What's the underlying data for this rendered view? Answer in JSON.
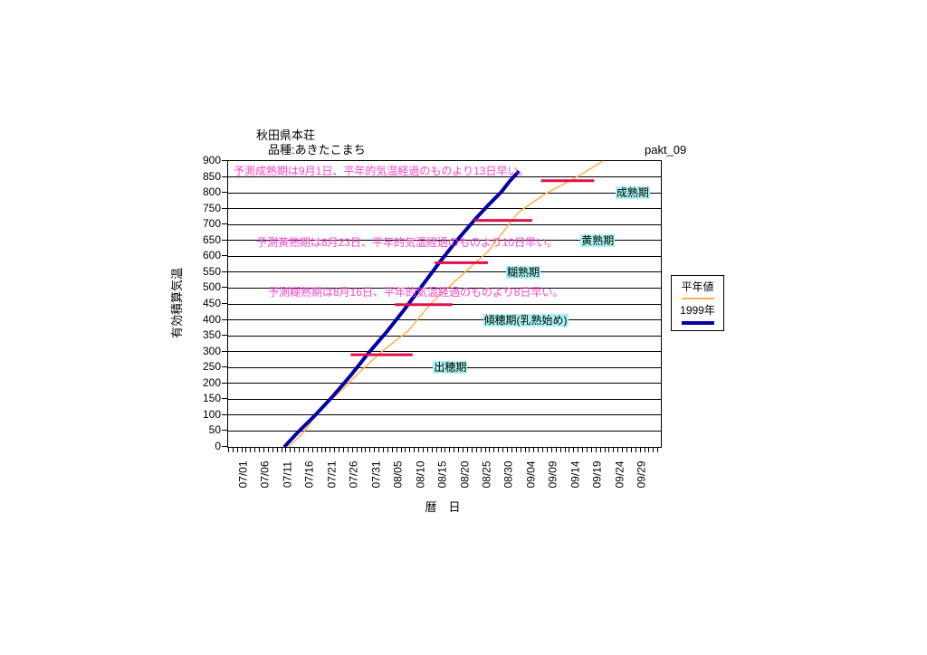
{
  "chart_data": {
    "type": "line",
    "title": "秋田県本荘",
    "subtitle": "品種:あきたこまち",
    "watermark": "pakt_09",
    "xlabel": "暦　日",
    "ylabel": "有効積算気温",
    "ylim": [
      0,
      900
    ],
    "ytick_step": 50,
    "grid": true,
    "legend_position": "right",
    "x_tick_labels": [
      "07/01",
      "07/06",
      "07/11",
      "07/16",
      "07/21",
      "07/26",
      "07/31",
      "08/05",
      "08/10",
      "08/15",
      "08/20",
      "08/25",
      "08/30",
      "09/04",
      "09/09",
      "09/14",
      "09/19",
      "09/24",
      "09/29"
    ],
    "x_day_span": 90,
    "series": [
      {
        "name": "平年値",
        "color": "#FFAE4C",
        "stroke_width": 1.5,
        "points_day_value": [
          [
            10,
            0
          ],
          [
            13,
            40
          ],
          [
            17,
            115
          ],
          [
            22,
            180
          ],
          [
            26,
            235
          ],
          [
            31,
            300
          ],
          [
            37,
            365
          ],
          [
            42,
            450
          ],
          [
            48,
            527
          ],
          [
            55,
            615
          ],
          [
            62,
            740
          ],
          [
            68,
            797
          ],
          [
            75,
            849
          ],
          [
            81,
            900
          ]
        ]
      },
      {
        "name": "1999年",
        "color": "#0000A8",
        "stroke_width": 4,
        "points_day_value": [
          [
            9,
            0
          ],
          [
            12,
            45
          ],
          [
            16,
            100
          ],
          [
            20,
            160
          ],
          [
            24,
            225
          ],
          [
            28,
            295
          ],
          [
            32,
            360
          ],
          [
            36,
            430
          ],
          [
            40,
            505
          ],
          [
            44,
            580
          ],
          [
            48,
            650
          ],
          [
            52,
            715
          ],
          [
            55,
            760
          ],
          [
            58,
            802
          ],
          [
            60,
            838
          ],
          [
            62,
            868
          ]
        ]
      }
    ],
    "stage_segments": {
      "color": "#E0104C",
      "stroke_width": 3,
      "items": [
        {
          "start_day": 24,
          "end_day": 38,
          "value": 290
        },
        {
          "start_day": 34,
          "end_day": 47,
          "value": 448
        },
        {
          "start_day": 43,
          "end_day": 55,
          "value": 580
        },
        {
          "start_day": 52,
          "end_day": 65,
          "value": 713
        },
        {
          "start_day": 67,
          "end_day": 79,
          "value": 838
        }
      ]
    },
    "stage_labels": [
      {
        "text": "出穂期",
        "day": 46.5,
        "value": 250
      },
      {
        "text": "傾穂期(乳熟始め)",
        "day": 63.5,
        "value": 400
      },
      {
        "text": "糊熟期",
        "day": 63.0,
        "value": 550
      },
      {
        "text": "黄熟期",
        "day": 79.8,
        "value": 650
      },
      {
        "text": "成熟期",
        "day": 87.7,
        "value": 800
      }
    ],
    "annotations": [
      {
        "text": "予測成熟期は9月1日、平年的気温経過のものより13日早い。"
      },
      {
        "text": "予測黄熟期は8月23日、平年的気温経過のものより10日早い。"
      },
      {
        "text": "予測糊熟期は8月16日、平年的気温経過のものより8日早い。"
      }
    ],
    "legend": {
      "entries": [
        "平年値",
        "1999年"
      ]
    },
    "colors": {
      "annotation_text": "#FF44CC",
      "stage_label_bg": "#AAF2F2",
      "grid": "#000000",
      "background": "#FFFFFF"
    }
  }
}
